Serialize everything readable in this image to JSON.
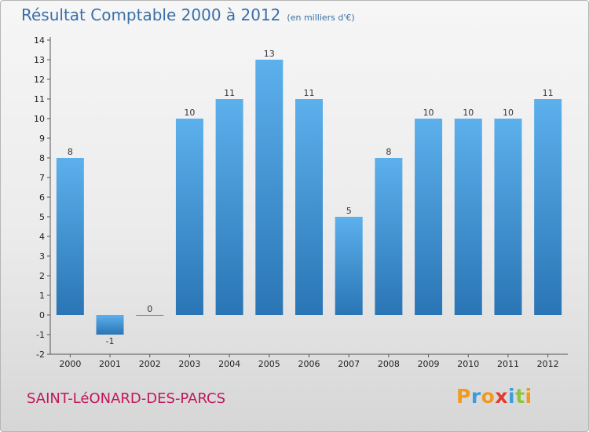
{
  "title": "Résultat Comptable 2000 à 2012",
  "subtitle": "(en milliers d'€)",
  "location": "SAINT-LéONARD-DES-PARCS",
  "logo": {
    "text": "Proxiti",
    "letters": [
      {
        "ch": "P",
        "color": "#f29a1f"
      },
      {
        "ch": "r",
        "color": "#3c9ddd"
      },
      {
        "ch": "o",
        "color": "#f29a1f"
      },
      {
        "ch": "x",
        "color": "#e23b2d"
      },
      {
        "ch": "i",
        "color": "#3c9ddd"
      },
      {
        "ch": "t",
        "color": "#8cc63e"
      },
      {
        "ch": "i",
        "color": "#f29a1f"
      }
    ]
  },
  "chart_data": {
    "type": "bar",
    "title": "Résultat Comptable 2000 à 2012",
    "subtitle": "(en milliers d'€)",
    "xlabel": "",
    "ylabel": "",
    "categories": [
      "2000",
      "2001",
      "2002",
      "2003",
      "2004",
      "2005",
      "2006",
      "2007",
      "2008",
      "2009",
      "2010",
      "2011",
      "2012"
    ],
    "values": [
      8,
      -1,
      0,
      10,
      11,
      13,
      11,
      5,
      8,
      10,
      10,
      10,
      11
    ],
    "ylim": [
      -2,
      14
    ],
    "yticks": [
      -2,
      -1,
      0,
      1,
      2,
      3,
      4,
      5,
      6,
      7,
      8,
      9,
      10,
      11,
      12,
      13,
      14
    ],
    "grid": false,
    "bar_color": "#4a9ede",
    "bar_color_light": "#5cb0ec",
    "bar_color_dark": "#2a75b5"
  }
}
